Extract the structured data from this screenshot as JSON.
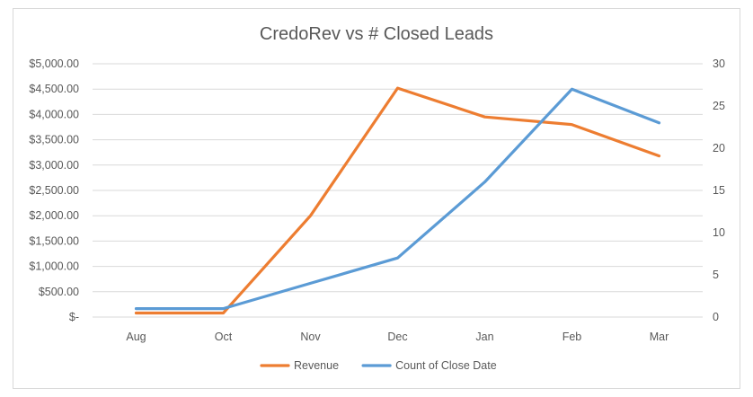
{
  "chart_data": {
    "type": "line",
    "title": "CredoRev vs # Closed Leads",
    "categories": [
      "Aug",
      "Oct",
      "Nov",
      "Dec",
      "Jan",
      "Feb",
      "Mar"
    ],
    "y_left": {
      "min": 0,
      "max": 5000,
      "step": 500,
      "tick_labels": [
        "$-",
        "$500.00",
        "$1,000.00",
        "$1,500.00",
        "$2,000.00",
        "$2,500.00",
        "$3,000.00",
        "$3,500.00",
        "$4,000.00",
        "$4,500.00",
        "$5,000.00"
      ]
    },
    "y_right": {
      "min": 0,
      "max": 30,
      "step": 5,
      "tick_labels": [
        "0",
        "5",
        "10",
        "15",
        "20",
        "25",
        "30"
      ]
    },
    "grid": true,
    "legend_position": "bottom",
    "series": [
      {
        "name": "Revenue",
        "axis": "left",
        "color": "#ED7D31",
        "values": [
          80,
          80,
          2000,
          4520,
          3950,
          3800,
          3180
        ]
      },
      {
        "name": "Count of Close Date",
        "axis": "right",
        "color": "#5B9BD5",
        "values": [
          1,
          1,
          4,
          7,
          16,
          27,
          23
        ]
      }
    ]
  }
}
